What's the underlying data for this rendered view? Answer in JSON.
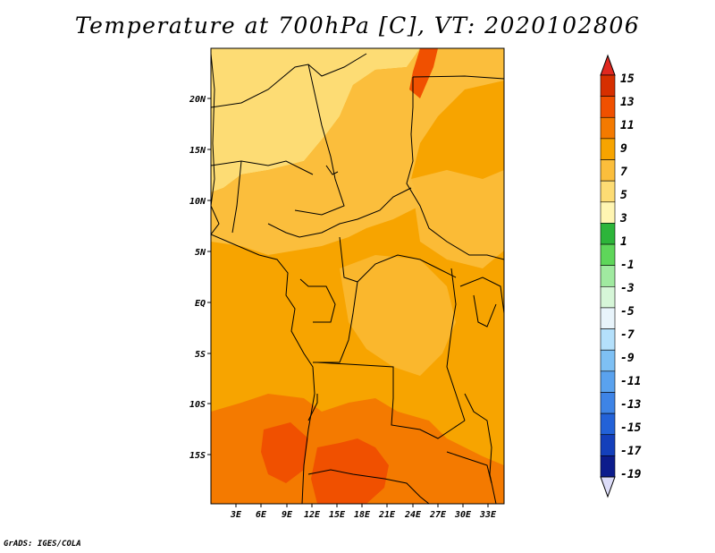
{
  "title": "Temperature at 700hPa [C], VT: 2020102806",
  "footer": "GrADS: IGES/COLA",
  "axes": {
    "lat_ticks": [
      "20N",
      "15N",
      "10N",
      "5N",
      "EQ",
      "5S",
      "10S",
      "15S"
    ],
    "lon_ticks": [
      "3E",
      "6E",
      "9E",
      "12E",
      "15E",
      "18E",
      "21E",
      "24E",
      "27E",
      "30E",
      "33E"
    ]
  },
  "colorbar": {
    "labels": [
      "15",
      "13",
      "11",
      "9",
      "7",
      "5",
      "3",
      "1",
      "-1",
      "-3",
      "-5",
      "-7",
      "-9",
      "-11",
      "-13",
      "-15",
      "-17",
      "-19"
    ],
    "colors": [
      "#d62f00",
      "#f05000",
      "#f47a00",
      "#f7a400",
      "#fbbe3c",
      "#fddc74",
      "#fff5b2",
      "#2db53a",
      "#5ed65a",
      "#a0eaa0",
      "#d6f6d8",
      "#e8f4fb",
      "#b4e0fb",
      "#7ec0f4",
      "#5aa2ee",
      "#3e84e6",
      "#2362d8",
      "#1440bb",
      "#0c1c8c"
    ],
    "overflow_top": "#e02820",
    "overflow_bottom": "#dcdcf8"
  },
  "map": {
    "region": "Central Africa",
    "base_color": "#f7a400",
    "field_colors": {
      "warm_5_7": "#fddc74",
      "warm_7_9": "#fbbe3c",
      "warm_9_11": "#f7a400",
      "warm_11_13": "#f47a00",
      "warm_13_15": "#f05000"
    }
  }
}
